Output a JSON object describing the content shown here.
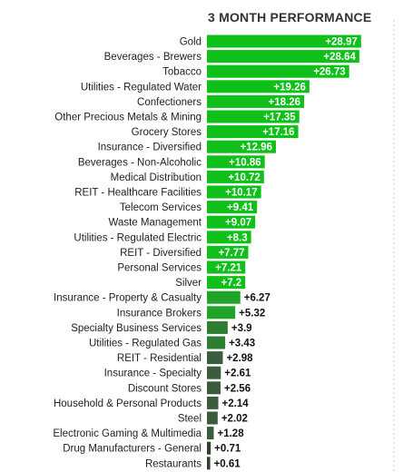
{
  "chart_data": {
    "type": "bar",
    "orientation": "horizontal",
    "title": "3 MONTH PERFORMANCE",
    "categories": [
      "Gold",
      "Beverages - Brewers",
      "Tobacco",
      "Utilities - Regulated Water",
      "Confectioners",
      "Other Precious Metals & Mining",
      "Grocery Stores",
      "Insurance - Diversified",
      "Beverages - Non-Alcoholic",
      "Medical Distribution",
      "REIT - Healthcare Facilities",
      "Telecom Services",
      "Waste Management",
      "Utilities - Regulated Electric",
      "REIT - Diversified",
      "Personal Services",
      "Silver",
      "Insurance - Property & Casualty",
      "Insurance Brokers",
      "Specialty Business Services",
      "Utilities - Regulated Gas",
      "REIT - Residential",
      "Insurance - Specialty",
      "Discount Stores",
      "Household & Personal Products",
      "Steel",
      "Electronic Gaming & Multimedia",
      "Drug Manufacturers - General",
      "Restaurants"
    ],
    "values": [
      28.97,
      28.64,
      26.73,
      19.26,
      18.26,
      17.35,
      17.16,
      12.96,
      10.86,
      10.72,
      10.17,
      9.41,
      9.07,
      8.3,
      7.77,
      7.21,
      7.2,
      6.27,
      5.32,
      3.9,
      3.43,
      2.98,
      2.61,
      2.56,
      2.14,
      2.02,
      1.28,
      0.71,
      0.61
    ],
    "value_labels": [
      "+28.97",
      "+28.64",
      "+26.73",
      "+19.26",
      "+18.26",
      "+17.35",
      "+17.16",
      "+12.96",
      "+10.86",
      "+10.72",
      "+10.17",
      "+9.41",
      "+9.07",
      "+8.3",
      "+7.77",
      "+7.21",
      "+7.2",
      "+6.27",
      "+5.32",
      "+3.9",
      "+3.43",
      "+2.98",
      "+2.61",
      "+2.56",
      "+2.14",
      "+2.02",
      "+1.28",
      "+0.71",
      "+0.61"
    ],
    "xlim": [
      0,
      29
    ],
    "grid": false,
    "legend": "none",
    "colors": {
      "high": "#10c01a",
      "mid_high": "#20a32a",
      "mid": "#2e7d32",
      "low": "#3a5e3d",
      "lowest": "#2f4030"
    }
  }
}
